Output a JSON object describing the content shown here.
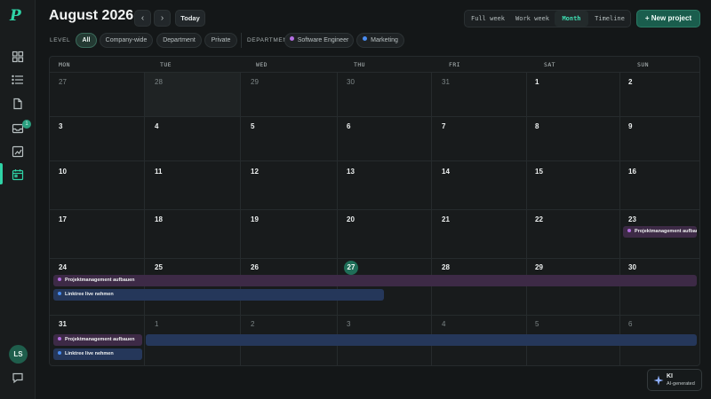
{
  "app": {
    "logo": "P"
  },
  "sidebar": {
    "icons": [
      "dashboard-icon",
      "list-icon",
      "document-icon",
      "inbox-icon",
      "reports-icon",
      "calendar-icon",
      "chat-icon"
    ],
    "notification_count": "1",
    "avatar_initials": "LS"
  },
  "header": {
    "title": "August 2026",
    "prev_glyph": "‹",
    "next_glyph": "›",
    "today_label": "Today",
    "views": [
      "Full week",
      "Work week",
      "Month",
      "Timeline"
    ],
    "active_view": "Month",
    "new_project_label": "+ New project"
  },
  "filters": {
    "level_label": "LEVEL",
    "level_options": [
      "All",
      "Company-wide",
      "Department",
      "Private"
    ],
    "level_active": "All",
    "department_label": "DEPARTMENT",
    "departments": [
      {
        "label": "Software Engineer",
        "color": "#b36ee0"
      },
      {
        "label": "Marketing",
        "color": "#4a8cf0"
      }
    ]
  },
  "calendar": {
    "weekdays": [
      "MON",
      "TUE",
      "WED",
      "THU",
      "FRI",
      "SAT",
      "SUN"
    ],
    "weeks": [
      [
        "27",
        "28",
        "29",
        "30",
        "31",
        "1",
        "2"
      ],
      [
        "3",
        "4",
        "5",
        "6",
        "7",
        "8",
        "9"
      ],
      [
        "10",
        "11",
        "12",
        "13",
        "14",
        "15",
        "16"
      ],
      [
        "17",
        "18",
        "19",
        "20",
        "21",
        "22",
        "23"
      ],
      [
        "24",
        "25",
        "26",
        "27",
        "28",
        "29",
        "30"
      ],
      [
        "31",
        "1",
        "2",
        "3",
        "4",
        "5",
        "6"
      ]
    ],
    "today": "27",
    "events": {
      "project_management": {
        "label": "Projektmanagement aufbauen",
        "color": "#b36ee0"
      },
      "linktree": {
        "label": "Linktree live nehmen",
        "color": "#4a8cf0"
      }
    }
  },
  "ai_badge": {
    "title": "KI",
    "subtitle": "AI-generated"
  }
}
